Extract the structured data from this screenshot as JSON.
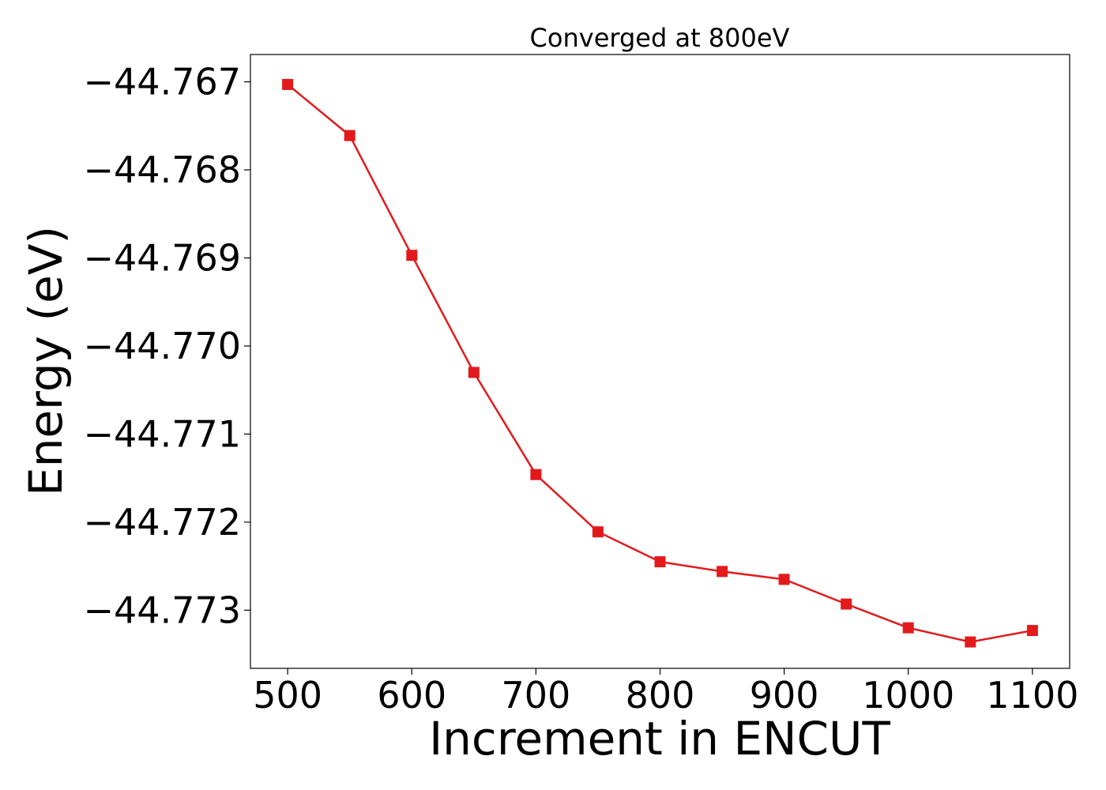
{
  "chart_data": {
    "type": "line",
    "title": "Converged at 800eV",
    "xlabel": "Increment in ENCUT",
    "ylabel": "Energy (eV)",
    "x": [
      500,
      550,
      600,
      650,
      700,
      750,
      800,
      850,
      900,
      950,
      1000,
      1050,
      1100
    ],
    "series": [
      {
        "values": [
          -44.76703,
          -44.76761,
          -44.76897,
          -44.7703,
          -44.77146,
          -44.77211,
          -44.77245,
          -44.77256,
          -44.77265,
          -44.77293,
          -44.7732,
          -44.77336,
          -44.77323
        ],
        "color": "#e31a1c",
        "marker": "square"
      }
    ],
    "xlim": [
      470,
      1130
    ],
    "ylim": [
      -44.77366,
      -44.76669
    ],
    "xticks": [
      500,
      600,
      700,
      800,
      900,
      1000,
      1100
    ],
    "xtick_labels": [
      "500",
      "600",
      "700",
      "800",
      "900",
      "1000",
      "1100"
    ],
    "yticks": [
      -44.767,
      -44.768,
      -44.769,
      -44.77,
      -44.771,
      -44.772,
      -44.773
    ],
    "ytick_labels": [
      "−44.767",
      "−44.768",
      "−44.769",
      "−44.770",
      "−44.771",
      "−44.772",
      "−44.773"
    ],
    "grid": false,
    "legend": "none"
  }
}
